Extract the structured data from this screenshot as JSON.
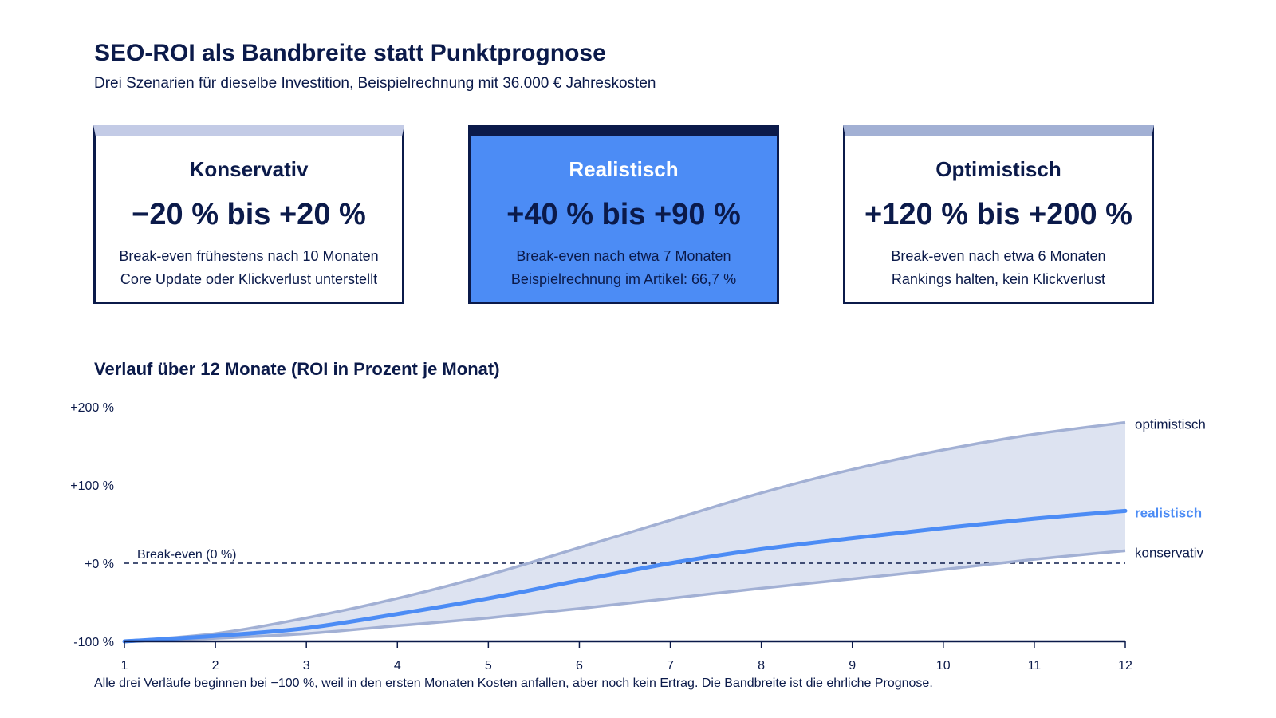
{
  "header": {
    "title": "SEO-ROI als Bandbreite statt Punktprognose",
    "subtitle": "Drei Szenarien für dieselbe Investition, Beispielrechnung mit 36.000 € Jahreskosten"
  },
  "cards": [
    {
      "name": "Konservativ",
      "range": "−20 % bis +20 %",
      "line1": "Break-even frühestens nach 10 Monaten",
      "line2": "Core Update oder Klickverlust unterstellt"
    },
    {
      "name": "Realistisch",
      "range": "+40 % bis +90 %",
      "line1": "Break-even nach etwa 7 Monaten",
      "line2": "Beispielrechnung im Artikel: 66,7 %"
    },
    {
      "name": "Optimistisch",
      "range": "+120 % bis +200 %",
      "line1": "Break-even nach etwa 6 Monaten",
      "line2": "Rankings halten, kein Klickverlust"
    }
  ],
  "colors": {
    "navy": "#0b1a4a",
    "accent": "#4c8cf5",
    "band": "#dde3f1",
    "band_edge": "#a2b0d4"
  },
  "chart_title": "Verlauf über 12 Monate (ROI in Prozent je Monat)",
  "footnote": "Alle drei Verläufe beginnen bei −100 %, weil in den ersten Monaten Kosten anfallen, aber noch kein Ertrag. Die Bandbreite ist die ehrliche Prognose.",
  "chart_data": {
    "type": "area",
    "x": [
      1,
      2,
      3,
      4,
      5,
      6,
      7,
      8,
      9,
      10,
      11,
      12
    ],
    "ylim": [
      -100,
      200
    ],
    "y_ticks": [
      -100,
      0,
      100,
      200
    ],
    "y_tick_labels": [
      "-100 %",
      "+0 %",
      "+100 %",
      "+200 %"
    ],
    "x_tick_labels": [
      "1",
      "2",
      "3",
      "4",
      "5",
      "6",
      "7",
      "8",
      "9",
      "10",
      "11",
      "12"
    ],
    "reference_line": {
      "y": 0,
      "label": "Break-even (0 %)"
    },
    "series": [
      {
        "name": "optimistisch",
        "values": [
          -100,
          -90,
          -70,
          -45,
          -15,
          20,
          55,
          90,
          120,
          145,
          165,
          180
        ]
      },
      {
        "name": "realistisch",
        "values": [
          -100,
          -93,
          -83,
          -65,
          -45,
          -22,
          0,
          18,
          32,
          45,
          57,
          67
        ]
      },
      {
        "name": "konservativ",
        "values": [
          -100,
          -96,
          -90,
          -80,
          -70,
          -58,
          -45,
          -32,
          -20,
          -8,
          5,
          16
        ]
      }
    ]
  }
}
